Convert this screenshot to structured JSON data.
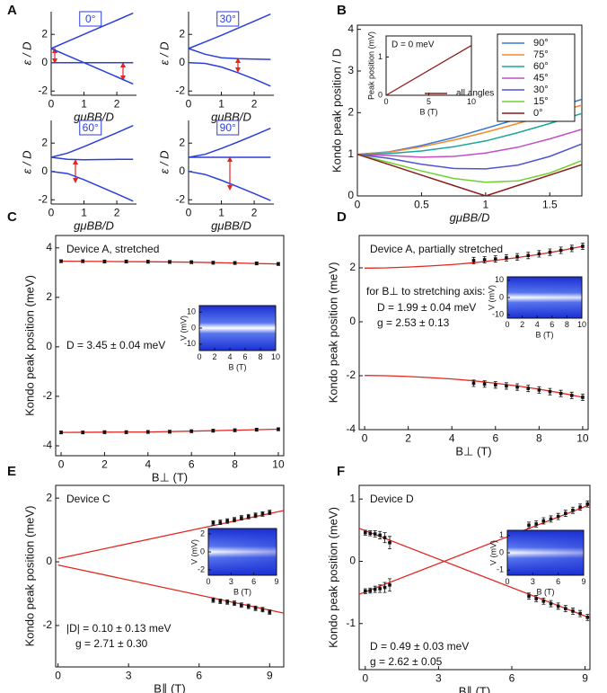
{
  "chart_data": [
    {
      "type": "line",
      "panel": "A",
      "title": "0°",
      "x_label": "gμBB/D",
      "y_label": "ε / D",
      "xlim": [
        0,
        2.6
      ],
      "ylim": [
        -2.3,
        3.6
      ],
      "xticks": [
        0,
        1,
        2
      ],
      "yticks": [
        -2,
        0,
        2
      ],
      "x": [
        0,
        0.5,
        1,
        1.5,
        2,
        2.5
      ],
      "series": [
        {
          "color": "#2b3fd9",
          "values": [
            1,
            1.5,
            2,
            2.5,
            3,
            3.5
          ]
        },
        {
          "color": "#2b3fd9",
          "values": [
            1,
            0.5,
            0,
            -0.5,
            -1,
            -1.5
          ]
        },
        {
          "color": "#2b3fd9",
          "values": [
            0,
            0,
            0,
            0,
            0,
            0
          ]
        }
      ]
    },
    {
      "type": "line",
      "title": "30°",
      "x_label": "gμBB/D",
      "y_label": "ε / D",
      "xlim": [
        0,
        2.6
      ],
      "ylim": [
        -2.3,
        3.6
      ],
      "xticks": [
        0,
        1,
        2
      ],
      "yticks": [
        -2,
        0,
        2
      ],
      "x": [
        0,
        0.5,
        1,
        1.5,
        2,
        2.5
      ],
      "series": [
        {
          "color": "#2b3fd9",
          "values": [
            1,
            1.46,
            1.93,
            2.43,
            2.93,
            3.43
          ]
        },
        {
          "color": "#2b3fd9",
          "values": [
            1,
            0.6,
            0.35,
            0.28,
            0.25,
            0.23
          ]
        },
        {
          "color": "#2b3fd9",
          "values": [
            0,
            -0.05,
            -0.3,
            -0.7,
            -1.15,
            -1.65
          ]
        }
      ]
    },
    {
      "type": "line",
      "title": "60°",
      "x_label": "gμBB/D",
      "y_label": "ε / D",
      "xlim": [
        0,
        2.6
      ],
      "ylim": [
        -2.3,
        3.6
      ],
      "xticks": [
        0,
        1,
        2
      ],
      "yticks": [
        -2,
        0,
        2
      ],
      "x": [
        0,
        0.5,
        1,
        1.5,
        2,
        2.5
      ],
      "series": [
        {
          "color": "#2b3fd9",
          "values": [
            1,
            1.3,
            1.75,
            2.24,
            2.73,
            3.24
          ]
        },
        {
          "color": "#2b3fd9",
          "values": [
            1,
            0.85,
            0.83,
            0.84,
            0.85,
            0.86
          ]
        },
        {
          "color": "#2b3fd9",
          "values": [
            0,
            -0.15,
            -0.58,
            -1.08,
            -1.58,
            -2.1
          ]
        }
      ]
    },
    {
      "type": "line",
      "title": "90°",
      "x_label": "gμBB/D",
      "y_label": "ε / D",
      "xlim": [
        0,
        2.6
      ],
      "ylim": [
        -2.3,
        3.6
      ],
      "xticks": [
        0,
        1,
        2
      ],
      "yticks": [
        -2,
        0,
        2
      ],
      "x": [
        0,
        0.5,
        1,
        1.5,
        2,
        2.5
      ],
      "series": [
        {
          "color": "#2b3fd9",
          "values": [
            1,
            1.21,
            1.62,
            2.08,
            2.56,
            3.05
          ]
        },
        {
          "color": "#2b3fd9",
          "values": [
            1,
            1,
            1,
            1,
            1,
            1
          ]
        },
        {
          "color": "#2b3fd9",
          "values": [
            0,
            -0.21,
            -0.62,
            -1.08,
            -1.56,
            -2.05
          ]
        }
      ]
    },
    {
      "type": "line",
      "panel": "B",
      "x_label": "gμBB/D",
      "y_label": "Kondo peak position / D",
      "xlim": [
        0,
        1.75
      ],
      "ylim": [
        0,
        4.1
      ],
      "xticks": [
        0,
        0.5,
        1,
        1.5
      ],
      "yticks": [
        0,
        1,
        2,
        3,
        4
      ],
      "legend": "upper right",
      "x": [
        0,
        0.25,
        0.5,
        0.75,
        1,
        1.25,
        1.5,
        1.75
      ],
      "series": [
        {
          "name": "90°",
          "color": "#3a78d8",
          "values": [
            1,
            1.06,
            1.21,
            1.4,
            1.62,
            1.85,
            2.08,
            2.32
          ]
        },
        {
          "name": "75°",
          "color": "#f28a2e",
          "values": [
            1,
            1.05,
            1.18,
            1.34,
            1.53,
            1.74,
            1.96,
            2.18
          ]
        },
        {
          "name": "60°",
          "color": "#19a79b",
          "values": [
            1,
            1.02,
            1.08,
            1.18,
            1.32,
            1.52,
            1.74,
            1.98
          ]
        },
        {
          "name": "45°",
          "color": "#c24fc4",
          "values": [
            1,
            0.97,
            0.93,
            0.95,
            1.03,
            1.17,
            1.37,
            1.6
          ]
        },
        {
          "name": "30°",
          "color": "#4d55d0",
          "values": [
            1,
            0.9,
            0.76,
            0.66,
            0.65,
            0.74,
            0.95,
            1.25
          ]
        },
        {
          "name": "15°",
          "color": "#6fd12e",
          "values": [
            1,
            0.8,
            0.6,
            0.42,
            0.33,
            0.36,
            0.55,
            0.85
          ]
        },
        {
          "name": "0°",
          "color": "#8b1c1c",
          "values": [
            1,
            0.75,
            0.5,
            0.25,
            0,
            0.25,
            0.5,
            0.75
          ]
        }
      ]
    },
    {
      "type": "line",
      "annotations": [
        "D = 0 meV"
      ],
      "x_label": "B (T)",
      "y_label": "Peak position (mV)",
      "xlim": [
        0,
        10
      ],
      "ylim": [
        0,
        1.55
      ],
      "xticks": [
        0,
        5,
        10
      ],
      "yticks": [
        0,
        1
      ],
      "x": [
        0,
        10
      ],
      "series": [
        {
          "name": "all angles",
          "color": "#8b1c1c",
          "values": [
            0,
            1.3
          ]
        }
      ]
    },
    {
      "type": "scatter",
      "panel": "C",
      "annotations": [
        "Device A, stretched",
        "D = 3.45 ± 0.04 meV"
      ],
      "x_label": "B⊥ (T)",
      "y_label": "Kondo peak position (meV)",
      "xlim": [
        -0.25,
        10.25
      ],
      "ylim": [
        -4.4,
        4.5
      ],
      "xticks": [
        0,
        2,
        4,
        6,
        8,
        10
      ],
      "yticks": [
        -4,
        -2,
        0,
        2,
        4
      ],
      "point_color": "#111111",
      "fit_color": "#e3261f",
      "points": [
        {
          "x": [
            0,
            1,
            2,
            3,
            4,
            5,
            6,
            7,
            8,
            9,
            10
          ],
          "values": [
            3.46,
            3.46,
            3.45,
            3.45,
            3.44,
            3.43,
            3.42,
            3.4,
            3.39,
            3.37,
            3.35
          ],
          "errors": [
            0.06,
            0.06,
            0.06,
            0.06,
            0.06,
            0.06,
            0.06,
            0.06,
            0.06,
            0.06,
            0.06
          ]
        },
        {
          "x": [
            0,
            1,
            2,
            3,
            4,
            5,
            6,
            7,
            8,
            9,
            10
          ],
          "values": [
            -3.46,
            -3.46,
            -3.45,
            -3.45,
            -3.44,
            -3.43,
            -3.41,
            -3.39,
            -3.37,
            -3.35,
            -3.33
          ],
          "errors": [
            0.06,
            0.06,
            0.06,
            0.06,
            0.06,
            0.06,
            0.06,
            0.06,
            0.06,
            0.06,
            0.06
          ]
        }
      ],
      "fits": [
        {
          "x": [
            0,
            2,
            4,
            6,
            8,
            10
          ],
          "values": [
            3.46,
            3.45,
            3.44,
            3.42,
            3.39,
            3.35
          ]
        },
        {
          "x": [
            0,
            2,
            4,
            6,
            8,
            10
          ],
          "values": [
            -3.46,
            -3.45,
            -3.44,
            -3.41,
            -3.37,
            -3.33
          ]
        }
      ]
    },
    {
      "type": "image",
      "x_label": "B (T)",
      "y_label": "V (mV)",
      "xlim": [
        0,
        10
      ],
      "ylim": [
        -14,
        14
      ],
      "xticks": [
        0,
        2,
        4,
        6,
        8,
        10
      ],
      "yticks": [
        -10,
        0,
        10
      ]
    },
    {
      "type": "scatter",
      "panel": "D",
      "annotations": [
        "Device A, partially stretched",
        "for B⊥ to stretching axis:",
        "D = 1.99 ± 0.04 meV",
        "g = 2.53 ± 0.13"
      ],
      "x_label": "B⊥ (T)",
      "y_label": "Kondo peak position (meV)",
      "xlim": [
        -0.25,
        10.25
      ],
      "ylim": [
        -4,
        3.2
      ],
      "xticks": [
        0,
        2,
        4,
        6,
        8,
        10
      ],
      "yticks": [
        -4,
        -2,
        0,
        2
      ],
      "point_color": "#111111",
      "fit_color": "#e3261f",
      "points": [
        {
          "x": [
            5,
            5.5,
            6,
            6.5,
            7,
            7.5,
            8,
            8.5,
            9,
            9.5,
            10
          ],
          "values": [
            2.27,
            2.3,
            2.33,
            2.37,
            2.41,
            2.46,
            2.52,
            2.58,
            2.65,
            2.72,
            2.8
          ],
          "errors": [
            0.12,
            0.12,
            0.12,
            0.12,
            0.12,
            0.12,
            0.12,
            0.12,
            0.12,
            0.12,
            0.12
          ]
        },
        {
          "x": [
            5,
            5.5,
            6,
            6.5,
            7,
            7.5,
            8,
            8.5,
            9,
            9.5,
            10
          ],
          "values": [
            -2.28,
            -2.31,
            -2.34,
            -2.38,
            -2.42,
            -2.47,
            -2.53,
            -2.59,
            -2.66,
            -2.73,
            -2.8
          ],
          "errors": [
            0.12,
            0.12,
            0.12,
            0.12,
            0.12,
            0.12,
            0.12,
            0.12,
            0.12,
            0.12,
            0.12
          ]
        }
      ],
      "fits": [
        {
          "x": [
            0,
            1,
            2,
            3,
            4,
            5,
            6,
            7,
            8,
            9,
            10
          ],
          "values": [
            1.99,
            2,
            2.03,
            2.07,
            2.12,
            2.19,
            2.28,
            2.38,
            2.5,
            2.64,
            2.8
          ]
        },
        {
          "x": [
            0,
            1,
            2,
            3,
            4,
            5,
            6,
            7,
            8,
            9,
            10
          ],
          "values": [
            -1.99,
            -2,
            -2.03,
            -2.07,
            -2.12,
            -2.19,
            -2.28,
            -2.38,
            -2.5,
            -2.64,
            -2.8
          ]
        }
      ]
    },
    {
      "type": "image",
      "x_label": "B (T)",
      "y_label": "V (mV)",
      "xlim": [
        0,
        10
      ],
      "ylim": [
        -12,
        12
      ],
      "xticks": [
        0,
        2,
        4,
        6,
        8,
        10
      ],
      "yticks": [
        -10,
        0,
        10
      ]
    },
    {
      "type": "scatter",
      "panel": "E",
      "annotations": [
        "Device C",
        "|D| = 0.10 ± 0.13 meV",
        "g = 2.71 ± 0.30"
      ],
      "x_label": "B∥ (T)",
      "y_label": "Kondo peak position (meV)",
      "xlim": [
        -0.1,
        9.6
      ],
      "ylim": [
        -3.3,
        2.4
      ],
      "xticks": [
        0,
        3,
        6,
        9
      ],
      "yticks": [
        -2,
        0,
        2
      ],
      "point_color": "#111111",
      "fit_color": "#e3261f",
      "points": [
        {
          "x": [
            6.6,
            6.9,
            7.2,
            7.5,
            7.8,
            8.1,
            8.4,
            8.7,
            9
          ],
          "values": [
            1.22,
            1.24,
            1.28,
            1.32,
            1.38,
            1.42,
            1.46,
            1.5,
            1.55
          ],
          "errors": [
            0.07,
            0.07,
            0.07,
            0.07,
            0.07,
            0.07,
            0.07,
            0.07,
            0.07
          ]
        },
        {
          "x": [
            6.6,
            6.9,
            7.2,
            7.5,
            7.8,
            8.1,
            8.4,
            8.7,
            9
          ],
          "values": [
            -1.2,
            -1.24,
            -1.26,
            -1.3,
            -1.36,
            -1.4,
            -1.46,
            -1.5,
            -1.58
          ],
          "errors": [
            0.07,
            0.07,
            0.07,
            0.07,
            0.07,
            0.07,
            0.07,
            0.07,
            0.07
          ]
        }
      ],
      "fits": [
        {
          "x": [
            0,
            9.6
          ],
          "values": [
            0.1,
            1.61
          ]
        },
        {
          "x": [
            0,
            9.6
          ],
          "values": [
            -0.1,
            -1.61
          ]
        }
      ]
    },
    {
      "type": "image",
      "x_label": "B (T)",
      "y_label": "V (mV)",
      "xlim": [
        0,
        9
      ],
      "ylim": [
        -2.6,
        2.6
      ],
      "xticks": [
        0,
        3,
        6,
        9
      ],
      "yticks": [
        -2,
        0,
        2
      ]
    },
    {
      "type": "scatter",
      "panel": "F",
      "annotations": [
        "Device D",
        "D = 0.49 ± 0.03 meV",
        "g = 2.62 ± 0.05"
      ],
      "x_label": "B∥ (T)",
      "y_label": "Kondo peak position (meV)",
      "xlim": [
        -0.25,
        9.2
      ],
      "ylim": [
        -1.74,
        1.22
      ],
      "xticks": [
        0,
        3,
        6,
        9
      ],
      "yticks": [
        -1,
        0,
        1
      ],
      "point_color": "#111111",
      "fit_color": "#e3261f",
      "points": [
        {
          "x": [
            0,
            0.2,
            0.4,
            0.6,
            0.8,
            1
          ],
          "values": [
            0.46,
            0.45,
            0.44,
            0.42,
            0.38,
            0.3
          ],
          "errors": [
            0.04,
            0.04,
            0.05,
            0.06,
            0.08,
            0.1
          ]
        },
        {
          "x": [
            0,
            0.2,
            0.4,
            0.6,
            0.8,
            1
          ],
          "values": [
            -0.48,
            -0.47,
            -0.45,
            -0.44,
            -0.42,
            -0.38
          ],
          "errors": [
            0.04,
            0.04,
            0.05,
            0.06,
            0.08,
            0.1
          ]
        },
        {
          "x": [
            6.7,
            7,
            7.3,
            7.6,
            7.9,
            8.2,
            8.5,
            8.8,
            9.1
          ],
          "values": [
            0.58,
            0.6,
            0.65,
            0.68,
            0.72,
            0.77,
            0.82,
            0.87,
            0.92
          ],
          "errors": [
            0.05,
            0.05,
            0.05,
            0.05,
            0.05,
            0.05,
            0.05,
            0.05,
            0.05
          ]
        },
        {
          "x": [
            6.7,
            7,
            7.3,
            7.6,
            7.9,
            8.2,
            8.5,
            8.8,
            9.1
          ],
          "values": [
            -0.56,
            -0.6,
            -0.64,
            -0.68,
            -0.72,
            -0.76,
            -0.8,
            -0.84,
            -0.9
          ],
          "errors": [
            0.05,
            0.05,
            0.05,
            0.05,
            0.05,
            0.05,
            0.05,
            0.05,
            0.05
          ]
        }
      ],
      "fits": [
        {
          "x": [
            -0.25,
            9.2
          ],
          "values": [
            0.53,
            -0.91
          ]
        },
        {
          "x": [
            -0.25,
            9.2
          ],
          "values": [
            -0.53,
            0.91
          ]
        }
      ]
    },
    {
      "type": "image",
      "x_label": "B (T)",
      "y_label": "V (mV)",
      "xlim": [
        0,
        9
      ],
      "ylim": [
        -1.3,
        1.3
      ],
      "xticks": [
        0,
        3,
        6,
        9
      ],
      "yticks": [
        -1,
        0,
        1
      ]
    }
  ]
}
